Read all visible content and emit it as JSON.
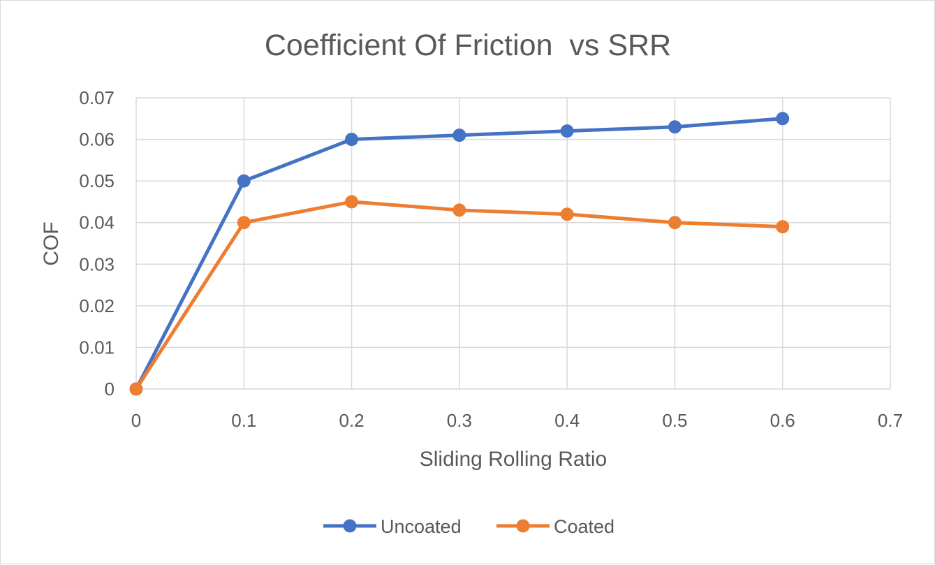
{
  "chart_data": {
    "type": "line",
    "title": "Coefficient Of Friction  vs SRR",
    "xlabel": "Sliding Rolling Ratio",
    "ylabel": "COF",
    "x": [
      0,
      0.1,
      0.2,
      0.3,
      0.4,
      0.5,
      0.6
    ],
    "xlim": [
      0,
      0.7
    ],
    "ylim": [
      0,
      0.07
    ],
    "xticks": [
      "0",
      "0.1",
      "0.2",
      "0.3",
      "0.4",
      "0.5",
      "0.6",
      "0.7"
    ],
    "yticks": [
      "0",
      "0.01",
      "0.02",
      "0.03",
      "0.04",
      "0.05",
      "0.06",
      "0.07"
    ],
    "grid": true,
    "legend_position": "bottom",
    "series": [
      {
        "name": "Uncoated",
        "color": "#4472c4",
        "marker": "circle",
        "values": [
          0,
          0.05,
          0.06,
          0.061,
          0.062,
          0.063,
          0.065
        ]
      },
      {
        "name": "Coated",
        "color": "#ed7d31",
        "marker": "circle",
        "values": [
          0,
          0.04,
          0.045,
          0.043,
          0.042,
          0.04,
          0.039
        ]
      }
    ]
  }
}
